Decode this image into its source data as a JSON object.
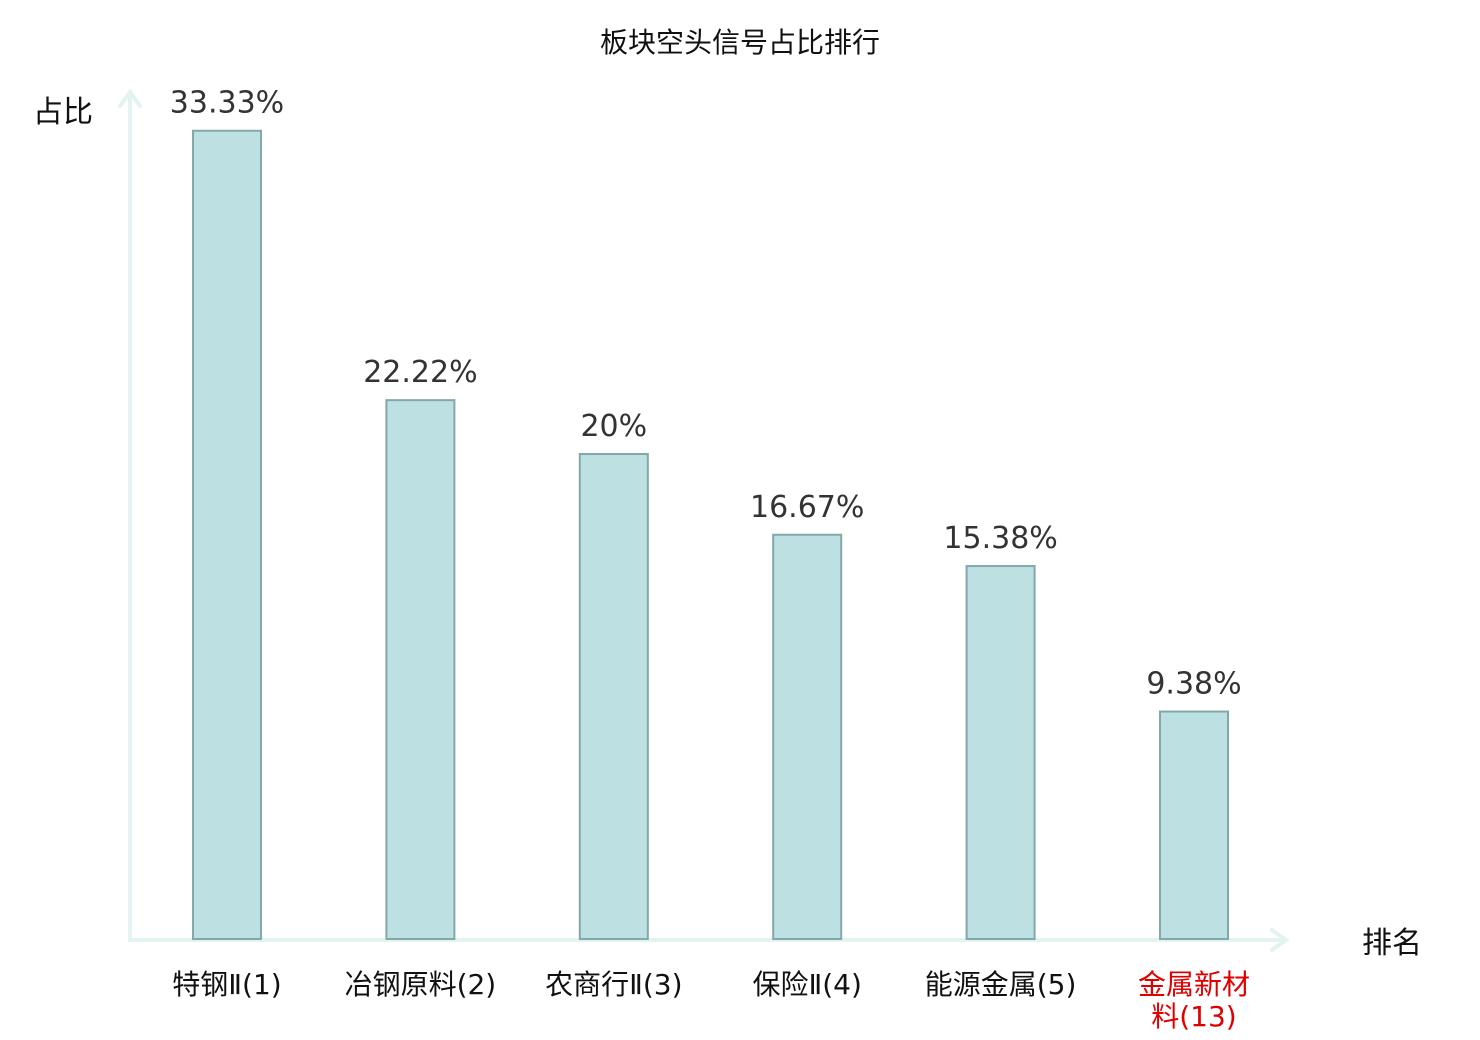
{
  "chart_data": {
    "type": "bar",
    "title": "板块空头信号占比排行",
    "ylabel": "占比",
    "xlabel": "排名",
    "ylim": [
      0,
      35
    ],
    "grid": false,
    "categories": [
      "特钢Ⅱ(1)",
      "冶钢原料(2)",
      "农商行Ⅱ(3)",
      "保险Ⅱ(4)",
      "能源金属(5)",
      "金属新材料(13)"
    ],
    "category_lines": [
      [
        "特钢Ⅱ(1)"
      ],
      [
        "冶钢原料(2)"
      ],
      [
        "农商行Ⅱ(3)"
      ],
      [
        "保险Ⅱ(4)"
      ],
      [
        "能源金属(5)"
      ],
      [
        "金属新材",
        "料(13)"
      ]
    ],
    "highlight_index": 5,
    "values": [
      33.33,
      22.22,
      20,
      16.67,
      15.38,
      9.38
    ],
    "value_labels": [
      "33.33%",
      "22.22%",
      "20%",
      "16.67%",
      "15.38%",
      "9.38%"
    ]
  },
  "colors": {
    "bar_fill": "#bde1e3",
    "bar_stroke": "#84a7a8",
    "axis": "#e2f3f1",
    "highlight_text": "#e00000",
    "text": "#111111"
  }
}
